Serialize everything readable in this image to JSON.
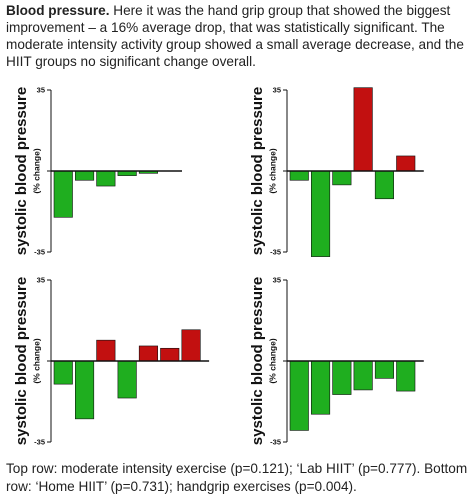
{
  "intro": {
    "heading": "Blood pressure.",
    "text": "Here it was the hand grip group that showed the biggest improvement – a 16% average drop, that was statistically significant. The moderate intensity activity group showed a small average decrease, and the HIIT groups no significant change overall."
  },
  "caption": "Top row: moderate intensity exercise (p=0.121); ‘Lab HIIT’ (p=0.777). Bottom row: ‘Home HIIT’ (p=0.731); handgrip exercises (p=0.004).",
  "colors": {
    "green": "#1fae1f",
    "red": "#c21010"
  },
  "chart_data": [
    {
      "type": "bar",
      "xlabel": "",
      "ylabel": "systolic blood pressure",
      "ylabel_sub": "(% change)",
      "ylim": [
        -35,
        35
      ],
      "yticks": [
        35,
        -35
      ],
      "tick_labels": [
        "35",
        "-35"
      ],
      "values": [
        -20,
        -4,
        -6.5,
        -2,
        -1
      ],
      "colors": [
        "green",
        "green",
        "green",
        "green",
        "green"
      ]
    },
    {
      "type": "bar",
      "xlabel": "",
      "ylabel": "systolic blood pressure",
      "ylabel_sub": "(% change)",
      "ylim": [
        -35,
        35
      ],
      "yticks": [
        35,
        -35
      ],
      "tick_labels": [
        "35",
        "-35"
      ],
      "values": [
        -4,
        -37,
        -6,
        36,
        -12,
        6.5
      ],
      "colors": [
        "green",
        "green",
        "green",
        "red",
        "green",
        "red"
      ]
    },
    {
      "type": "bar",
      "xlabel": "",
      "ylabel": "systolic blood pressure",
      "ylabel_sub": "(% change)",
      "ylim": [
        -35,
        35
      ],
      "yticks": [
        35,
        -35
      ],
      "tick_labels": [
        "35",
        "-35"
      ],
      "values": [
        -10,
        -25,
        9,
        -16,
        6.5,
        5.5,
        13.5
      ],
      "colors": [
        "green",
        "green",
        "red",
        "green",
        "red",
        "red",
        "red"
      ]
    },
    {
      "type": "bar",
      "xlabel": "",
      "ylabel": "systolic blood pressure",
      "ylabel_sub": "(% change)",
      "ylim": [
        -35,
        35
      ],
      "yticks": [
        35,
        -35
      ],
      "tick_labels": [
        "35",
        "-35"
      ],
      "values": [
        -30,
        -23,
        -14.5,
        -12.5,
        -7.5,
        -13
      ],
      "colors": [
        "green",
        "green",
        "green",
        "green",
        "green",
        "green"
      ]
    }
  ]
}
